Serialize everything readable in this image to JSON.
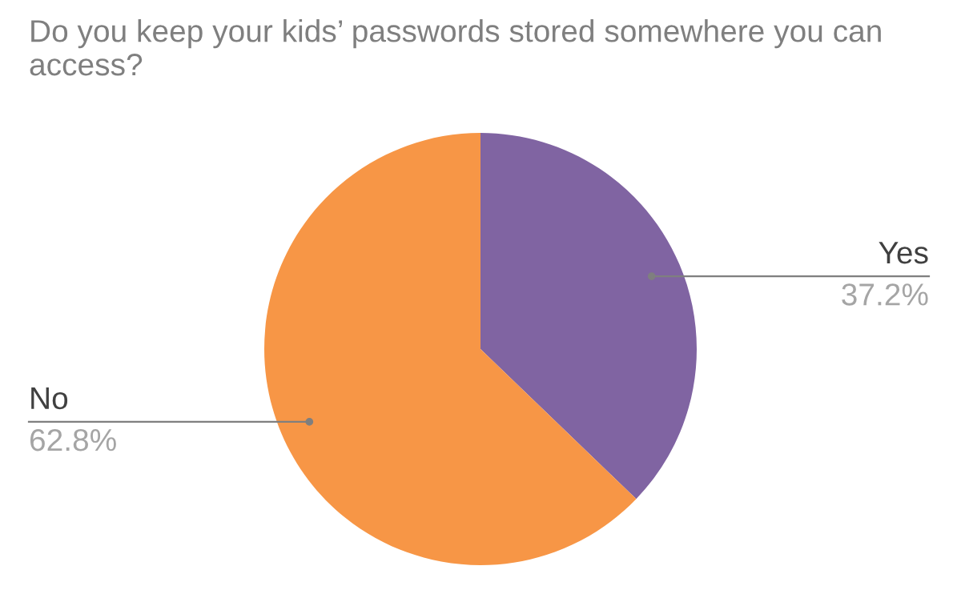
{
  "chart_data": {
    "type": "pie",
    "title": "Do you keep your kids’ passwords stored somewhere you can access?",
    "categories": [
      "Yes",
      "No"
    ],
    "values": [
      37.2,
      62.8
    ],
    "colors": [
      "#8064a2",
      "#f79646"
    ],
    "value_labels": [
      "37.2%",
      "62.8%"
    ],
    "legend": false
  }
}
